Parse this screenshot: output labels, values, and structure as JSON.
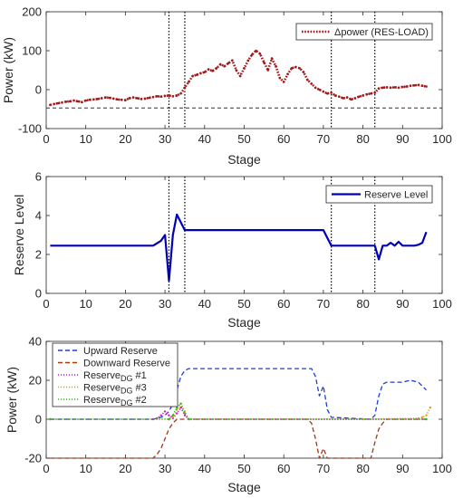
{
  "chart_data": [
    {
      "type": "line",
      "xlabel": "Stage",
      "ylabel": "Power (kW)",
      "xlim": [
        0,
        100
      ],
      "ylim": [
        -100,
        200
      ],
      "xticks": [
        0,
        10,
        20,
        30,
        40,
        50,
        60,
        70,
        80,
        90,
        100
      ],
      "yticks": [
        -100,
        0,
        100,
        200
      ],
      "grid": false,
      "legend_position": "top-right",
      "colors": {
        "series": "#a11a1a",
        "reference": "#333333",
        "stage_markers": "#000000"
      },
      "series": [
        {
          "name": "Δpower (RES-LOAD)",
          "x": [
            1,
            2,
            3,
            4,
            5,
            6,
            7,
            8,
            9,
            10,
            11,
            12,
            13,
            14,
            15,
            16,
            17,
            18,
            19,
            20,
            21,
            22,
            23,
            24,
            25,
            26,
            27,
            28,
            29,
            30,
            31,
            32,
            33,
            34,
            35,
            36,
            37,
            38,
            39,
            40,
            41,
            42,
            43,
            44,
            45,
            46,
            47,
            48,
            49,
            50,
            51,
            52,
            53,
            54,
            55,
            56,
            57,
            58,
            59,
            60,
            61,
            62,
            63,
            64,
            65,
            66,
            67,
            68,
            69,
            70,
            71,
            72,
            73,
            74,
            75,
            76,
            77,
            78,
            79,
            80,
            81,
            82,
            83,
            84,
            85,
            86,
            87,
            88,
            89,
            90,
            91,
            92,
            93,
            94,
            95,
            96
          ],
          "values": [
            -39,
            -37,
            -35,
            -33,
            -31,
            -30,
            -28,
            -30,
            -32,
            -28,
            -26,
            -25,
            -24,
            -22,
            -20,
            -21,
            -23,
            -25,
            -26,
            -27,
            -22,
            -20,
            -22,
            -24,
            -23,
            -21,
            -19,
            -17,
            -18,
            -16,
            -15,
            -17,
            -15,
            -10,
            5,
            20,
            35,
            38,
            42,
            45,
            52,
            48,
            55,
            65,
            60,
            68,
            75,
            50,
            35,
            55,
            75,
            90,
            100,
            92,
            70,
            50,
            80,
            60,
            30,
            20,
            40,
            55,
            58,
            55,
            45,
            25,
            15,
            5,
            0,
            -5,
            -10,
            -8,
            -15,
            -18,
            -22,
            -20,
            -25,
            -22,
            -18,
            -15,
            -12,
            -10,
            -8,
            3,
            5,
            6,
            5,
            6,
            5,
            7,
            8,
            10,
            11,
            12,
            10,
            8
          ]
        }
      ],
      "reference_lines": {
        "horizontal_dashed_y": -47,
        "vertical_dotted_x": [
          31,
          35,
          72,
          83
        ]
      }
    },
    {
      "type": "line",
      "xlabel": "Stage",
      "ylabel": "Reserve Level",
      "xlim": [
        0,
        100
      ],
      "ylim": [
        0,
        6
      ],
      "xticks": [
        0,
        10,
        20,
        30,
        40,
        50,
        60,
        70,
        80,
        90,
        100
      ],
      "yticks": [
        0,
        2,
        4,
        6
      ],
      "grid": false,
      "legend_position": "top-right",
      "colors": {
        "series": "#0000b4",
        "stage_markers": "#000000"
      },
      "series": [
        {
          "name": "Reserve Level",
          "x": [
            1,
            27,
            29,
            30,
            31,
            32,
            33,
            35,
            70,
            72,
            83,
            84,
            85,
            86,
            87,
            88,
            89,
            90,
            91,
            92,
            93,
            94,
            95,
            96
          ],
          "values": [
            2.45,
            2.45,
            2.7,
            3.0,
            0.65,
            3.0,
            4.05,
            3.25,
            3.25,
            2.45,
            2.45,
            1.75,
            2.45,
            2.45,
            2.6,
            2.45,
            2.65,
            2.45,
            2.45,
            2.45,
            2.45,
            2.5,
            2.6,
            3.15
          ]
        }
      ],
      "reference_lines": {
        "vertical_dotted_x": [
          31,
          35,
          72,
          83
        ]
      }
    },
    {
      "type": "line",
      "xlabel": "Stage",
      "ylabel": "Power (kW)",
      "xlim": [
        0,
        100
      ],
      "ylim": [
        -20,
        40
      ],
      "xticks": [
        0,
        10,
        20,
        30,
        40,
        50,
        60,
        70,
        80,
        90,
        100
      ],
      "yticks": [
        -20,
        0,
        20,
        40
      ],
      "grid": false,
      "legend_position": "top-left",
      "series": [
        {
          "name": "Upward Reserve",
          "color": "#1f3fd1",
          "style": "dashed",
          "x": [
            1,
            27,
            29,
            30,
            31,
            32,
            33,
            34,
            35,
            36,
            40,
            60,
            67,
            68,
            69,
            70,
            71,
            72,
            82,
            83,
            84,
            85,
            86,
            90,
            92,
            94,
            96
          ],
          "values": [
            0,
            0,
            1,
            2,
            4,
            8,
            15,
            22,
            25,
            26,
            26,
            26,
            26,
            22,
            12,
            17,
            5,
            1,
            0,
            2,
            12,
            18,
            19,
            19,
            20,
            19,
            15
          ]
        },
        {
          "name": "Downward Reserve",
          "color": "#9e3a17",
          "style": "dashed",
          "x": [
            1,
            20,
            27,
            28,
            29,
            30,
            31,
            32,
            33,
            34,
            35,
            36,
            40,
            66,
            67,
            68,
            69,
            70,
            71,
            72,
            81,
            82,
            83,
            84,
            85,
            86,
            88,
            96
          ],
          "values": [
            -20,
            -20,
            -20,
            -18,
            -15,
            -10,
            -5,
            -2,
            0,
            0,
            0,
            0,
            0,
            0,
            -2,
            -10,
            -20,
            -15,
            -20,
            -20,
            -20,
            -20,
            -12,
            -5,
            -2,
            0,
            0,
            0
          ]
        },
        {
          "name": "Reserve_DG #1",
          "label_main": "Reserve",
          "label_sub": "DG",
          "label_suffix": " #1",
          "color": "#c41fd1",
          "style": "dotted",
          "x": [
            1,
            27,
            28,
            29,
            30,
            31,
            32,
            33,
            34,
            35,
            36,
            96
          ],
          "values": [
            0,
            0,
            0.5,
            2,
            4,
            2,
            0.5,
            3,
            6,
            2,
            0,
            0
          ]
        },
        {
          "name": "Reserve_DG #3",
          "label_main": "Reserve",
          "label_sub": "DG",
          "label_suffix": " #3",
          "color": "#d6a21a",
          "style": "dotted",
          "x": [
            1,
            31,
            32,
            33,
            34,
            35,
            36,
            80,
            94,
            95,
            96,
            97
          ],
          "values": [
            0,
            0,
            1,
            5,
            8,
            4,
            0,
            0,
            0.5,
            1,
            2,
            6
          ]
        },
        {
          "name": "Reserve_DG #2",
          "label_main": "Reserve",
          "label_sub": "DG",
          "label_suffix": " #2",
          "color": "#34b81f",
          "style": "dotted",
          "x": [
            1,
            31,
            32,
            33,
            34,
            35,
            36,
            96
          ],
          "values": [
            0,
            0,
            2,
            6,
            8,
            3,
            0,
            0
          ]
        }
      ]
    }
  ]
}
